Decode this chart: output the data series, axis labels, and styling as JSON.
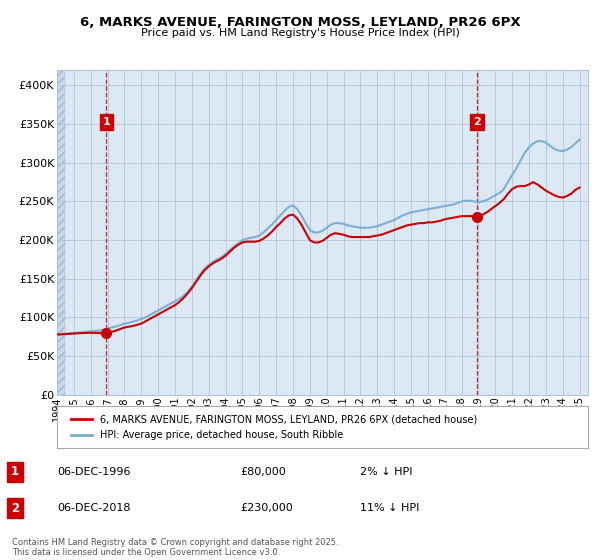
{
  "title": "6, MARKS AVENUE, FARINGTON MOSS, LEYLAND, PR26 6PX",
  "subtitle": "Price paid vs. HM Land Registry's House Price Index (HPI)",
  "legend_entry1": "6, MARKS AVENUE, FARINGTON MOSS, LEYLAND, PR26 6PX (detached house)",
  "legend_entry2": "HPI: Average price, detached house, South Ribble",
  "annotation1_label": "1",
  "annotation1_date": "06-DEC-1996",
  "annotation1_price": "£80,000",
  "annotation1_hpi": "2% ↓ HPI",
  "annotation2_label": "2",
  "annotation2_date": "06-DEC-2018",
  "annotation2_price": "£230,000",
  "annotation2_hpi": "11% ↓ HPI",
  "footnote": "Contains HM Land Registry data © Crown copyright and database right 2025.\nThis data is licensed under the Open Government Licence v3.0.",
  "house_color": "#cc0000",
  "hpi_color": "#7ab0d4",
  "vline_color": "#cc0000",
  "background_color": "#ffffff",
  "chart_bg_color": "#dce9f5",
  "hatch_bg_color": "#c8d8e8",
  "grid_color": "#b0c4d8",
  "ylim": [
    0,
    420000
  ],
  "yticks": [
    0,
    50000,
    100000,
    150000,
    200000,
    250000,
    300000,
    350000,
    400000
  ],
  "sale1_year": 1996.92,
  "sale1_price": 80000,
  "sale2_year": 2018.92,
  "sale2_price": 230000,
  "hatch_end_year": 1994.5,
  "xmin": 1994.0,
  "xmax": 2025.5,
  "hpi_data": [
    [
      1994.0,
      78000
    ],
    [
      1994.25,
      78500
    ],
    [
      1994.5,
      79000
    ],
    [
      1994.75,
      79500
    ],
    [
      1995.0,
      80000
    ],
    [
      1995.25,
      80500
    ],
    [
      1995.5,
      81000
    ],
    [
      1995.75,
      81500
    ],
    [
      1996.0,
      82000
    ],
    [
      1996.25,
      82500
    ],
    [
      1996.5,
      83000
    ],
    [
      1996.75,
      84000
    ],
    [
      1997.0,
      86000
    ],
    [
      1997.25,
      87000
    ],
    [
      1997.5,
      88500
    ],
    [
      1997.75,
      90000
    ],
    [
      1998.0,
      92000
    ],
    [
      1998.25,
      93000
    ],
    [
      1998.5,
      94500
    ],
    [
      1998.75,
      96000
    ],
    [
      1999.0,
      98000
    ],
    [
      1999.25,
      100000
    ],
    [
      1999.5,
      103000
    ],
    [
      1999.75,
      106000
    ],
    [
      2000.0,
      109000
    ],
    [
      2000.25,
      112000
    ],
    [
      2000.5,
      115000
    ],
    [
      2000.75,
      118000
    ],
    [
      2001.0,
      121000
    ],
    [
      2001.25,
      124000
    ],
    [
      2001.5,
      128000
    ],
    [
      2001.75,
      133000
    ],
    [
      2002.0,
      140000
    ],
    [
      2002.25,
      148000
    ],
    [
      2002.5,
      156000
    ],
    [
      2002.75,
      163000
    ],
    [
      2003.0,
      168000
    ],
    [
      2003.25,
      172000
    ],
    [
      2003.5,
      175000
    ],
    [
      2003.75,
      178000
    ],
    [
      2004.0,
      182000
    ],
    [
      2004.25,
      187000
    ],
    [
      2004.5,
      192000
    ],
    [
      2004.75,
      196000
    ],
    [
      2005.0,
      200000
    ],
    [
      2005.25,
      202000
    ],
    [
      2005.5,
      203000
    ],
    [
      2005.75,
      204000
    ],
    [
      2006.0,
      206000
    ],
    [
      2006.25,
      210000
    ],
    [
      2006.5,
      215000
    ],
    [
      2006.75,
      220000
    ],
    [
      2007.0,
      226000
    ],
    [
      2007.25,
      232000
    ],
    [
      2007.5,
      238000
    ],
    [
      2007.75,
      243000
    ],
    [
      2008.0,
      245000
    ],
    [
      2008.25,
      240000
    ],
    [
      2008.5,
      232000
    ],
    [
      2008.75,
      222000
    ],
    [
      2009.0,
      213000
    ],
    [
      2009.25,
      210000
    ],
    [
      2009.5,
      210000
    ],
    [
      2009.75,
      212000
    ],
    [
      2010.0,
      216000
    ],
    [
      2010.25,
      220000
    ],
    [
      2010.5,
      222000
    ],
    [
      2010.75,
      222000
    ],
    [
      2011.0,
      221000
    ],
    [
      2011.25,
      219000
    ],
    [
      2011.5,
      218000
    ],
    [
      2011.75,
      217000
    ],
    [
      2012.0,
      216000
    ],
    [
      2012.25,
      216000
    ],
    [
      2012.5,
      216000
    ],
    [
      2012.75,
      217000
    ],
    [
      2013.0,
      218000
    ],
    [
      2013.25,
      220000
    ],
    [
      2013.5,
      222000
    ],
    [
      2013.75,
      224000
    ],
    [
      2014.0,
      226000
    ],
    [
      2014.25,
      229000
    ],
    [
      2014.5,
      232000
    ],
    [
      2014.75,
      234000
    ],
    [
      2015.0,
      236000
    ],
    [
      2015.25,
      237000
    ],
    [
      2015.5,
      238000
    ],
    [
      2015.75,
      239000
    ],
    [
      2016.0,
      240000
    ],
    [
      2016.25,
      241000
    ],
    [
      2016.5,
      242000
    ],
    [
      2016.75,
      243000
    ],
    [
      2017.0,
      244000
    ],
    [
      2017.25,
      245000
    ],
    [
      2017.5,
      246000
    ],
    [
      2017.75,
      248000
    ],
    [
      2018.0,
      250000
    ],
    [
      2018.25,
      251000
    ],
    [
      2018.5,
      251000
    ],
    [
      2018.75,
      250000
    ],
    [
      2019.0,
      249000
    ],
    [
      2019.25,
      250000
    ],
    [
      2019.5,
      252000
    ],
    [
      2019.75,
      255000
    ],
    [
      2020.0,
      258000
    ],
    [
      2020.25,
      261000
    ],
    [
      2020.5,
      266000
    ],
    [
      2020.75,
      275000
    ],
    [
      2021.0,
      284000
    ],
    [
      2021.25,
      293000
    ],
    [
      2021.5,
      303000
    ],
    [
      2021.75,
      313000
    ],
    [
      2022.0,
      320000
    ],
    [
      2022.25,
      325000
    ],
    [
      2022.5,
      328000
    ],
    [
      2022.75,
      328000
    ],
    [
      2023.0,
      326000
    ],
    [
      2023.25,
      322000
    ],
    [
      2023.5,
      318000
    ],
    [
      2023.75,
      316000
    ],
    [
      2024.0,
      315000
    ],
    [
      2024.25,
      317000
    ],
    [
      2024.5,
      320000
    ],
    [
      2024.75,
      325000
    ],
    [
      2025.0,
      330000
    ]
  ],
  "house_data": [
    [
      1994.0,
      78000
    ],
    [
      1994.25,
      78200
    ],
    [
      1994.5,
      78500
    ],
    [
      1994.75,
      78800
    ],
    [
      1995.0,
      79200
    ],
    [
      1995.25,
      79500
    ],
    [
      1995.5,
      79800
    ],
    [
      1995.75,
      80000
    ],
    [
      1996.0,
      80200
    ],
    [
      1996.25,
      80000
    ],
    [
      1996.5,
      79800
    ],
    [
      1996.75,
      79500
    ],
    [
      1996.92,
      80000
    ],
    [
      1997.0,
      80500
    ],
    [
      1997.25,
      81500
    ],
    [
      1997.5,
      83000
    ],
    [
      1997.75,
      85000
    ],
    [
      1998.0,
      87000
    ],
    [
      1998.25,
      88000
    ],
    [
      1998.5,
      89000
    ],
    [
      1998.75,
      90500
    ],
    [
      1999.0,
      92000
    ],
    [
      1999.25,
      95000
    ],
    [
      1999.5,
      98000
    ],
    [
      1999.75,
      101000
    ],
    [
      2000.0,
      104000
    ],
    [
      2000.25,
      107000
    ],
    [
      2000.5,
      110000
    ],
    [
      2000.75,
      113000
    ],
    [
      2001.0,
      116000
    ],
    [
      2001.25,
      120000
    ],
    [
      2001.5,
      125000
    ],
    [
      2001.75,
      131000
    ],
    [
      2002.0,
      138000
    ],
    [
      2002.25,
      146000
    ],
    [
      2002.5,
      154000
    ],
    [
      2002.75,
      161000
    ],
    [
      2003.0,
      166000
    ],
    [
      2003.25,
      170000
    ],
    [
      2003.5,
      173000
    ],
    [
      2003.75,
      176000
    ],
    [
      2004.0,
      180000
    ],
    [
      2004.25,
      185000
    ],
    [
      2004.5,
      190000
    ],
    [
      2004.75,
      194000
    ],
    [
      2005.0,
      197000
    ],
    [
      2005.25,
      198000
    ],
    [
      2005.5,
      198000
    ],
    [
      2005.75,
      198000
    ],
    [
      2006.0,
      199000
    ],
    [
      2006.25,
      202000
    ],
    [
      2006.5,
      206000
    ],
    [
      2006.75,
      211000
    ],
    [
      2007.0,
      217000
    ],
    [
      2007.25,
      222000
    ],
    [
      2007.5,
      228000
    ],
    [
      2007.75,
      232000
    ],
    [
      2008.0,
      233000
    ],
    [
      2008.25,
      228000
    ],
    [
      2008.5,
      220000
    ],
    [
      2008.75,
      210000
    ],
    [
      2009.0,
      200000
    ],
    [
      2009.25,
      197000
    ],
    [
      2009.5,
      197000
    ],
    [
      2009.75,
      199000
    ],
    [
      2010.0,
      203000
    ],
    [
      2010.25,
      207000
    ],
    [
      2010.5,
      209000
    ],
    [
      2010.75,
      208000
    ],
    [
      2011.0,
      207000
    ],
    [
      2011.25,
      205000
    ],
    [
      2011.5,
      204000
    ],
    [
      2011.75,
      204000
    ],
    [
      2012.0,
      204000
    ],
    [
      2012.25,
      204000
    ],
    [
      2012.5,
      204000
    ],
    [
      2012.75,
      205000
    ],
    [
      2013.0,
      206000
    ],
    [
      2013.25,
      207000
    ],
    [
      2013.5,
      209000
    ],
    [
      2013.75,
      211000
    ],
    [
      2014.0,
      213000
    ],
    [
      2014.25,
      215000
    ],
    [
      2014.5,
      217000
    ],
    [
      2014.75,
      219000
    ],
    [
      2015.0,
      220000
    ],
    [
      2015.25,
      221000
    ],
    [
      2015.5,
      222000
    ],
    [
      2015.75,
      222000
    ],
    [
      2016.0,
      223000
    ],
    [
      2016.25,
      223000
    ],
    [
      2016.5,
      224000
    ],
    [
      2016.75,
      225000
    ],
    [
      2017.0,
      227000
    ],
    [
      2017.25,
      228000
    ],
    [
      2017.5,
      229000
    ],
    [
      2017.75,
      230000
    ],
    [
      2018.0,
      231000
    ],
    [
      2018.25,
      231000
    ],
    [
      2018.5,
      231000
    ],
    [
      2018.75,
      231000
    ],
    [
      2018.92,
      230000
    ],
    [
      2019.0,
      231000
    ],
    [
      2019.25,
      233000
    ],
    [
      2019.5,
      236000
    ],
    [
      2019.75,
      240000
    ],
    [
      2020.0,
      244000
    ],
    [
      2020.25,
      248000
    ],
    [
      2020.5,
      253000
    ],
    [
      2020.75,
      260000
    ],
    [
      2021.0,
      266000
    ],
    [
      2021.25,
      269000
    ],
    [
      2021.5,
      270000
    ],
    [
      2021.75,
      270000
    ],
    [
      2022.0,
      272000
    ],
    [
      2022.25,
      275000
    ],
    [
      2022.5,
      272000
    ],
    [
      2022.75,
      268000
    ],
    [
      2023.0,
      264000
    ],
    [
      2023.25,
      261000
    ],
    [
      2023.5,
      258000
    ],
    [
      2023.75,
      256000
    ],
    [
      2024.0,
      255000
    ],
    [
      2024.25,
      257000
    ],
    [
      2024.5,
      260000
    ],
    [
      2024.75,
      265000
    ],
    [
      2025.0,
      268000
    ]
  ]
}
